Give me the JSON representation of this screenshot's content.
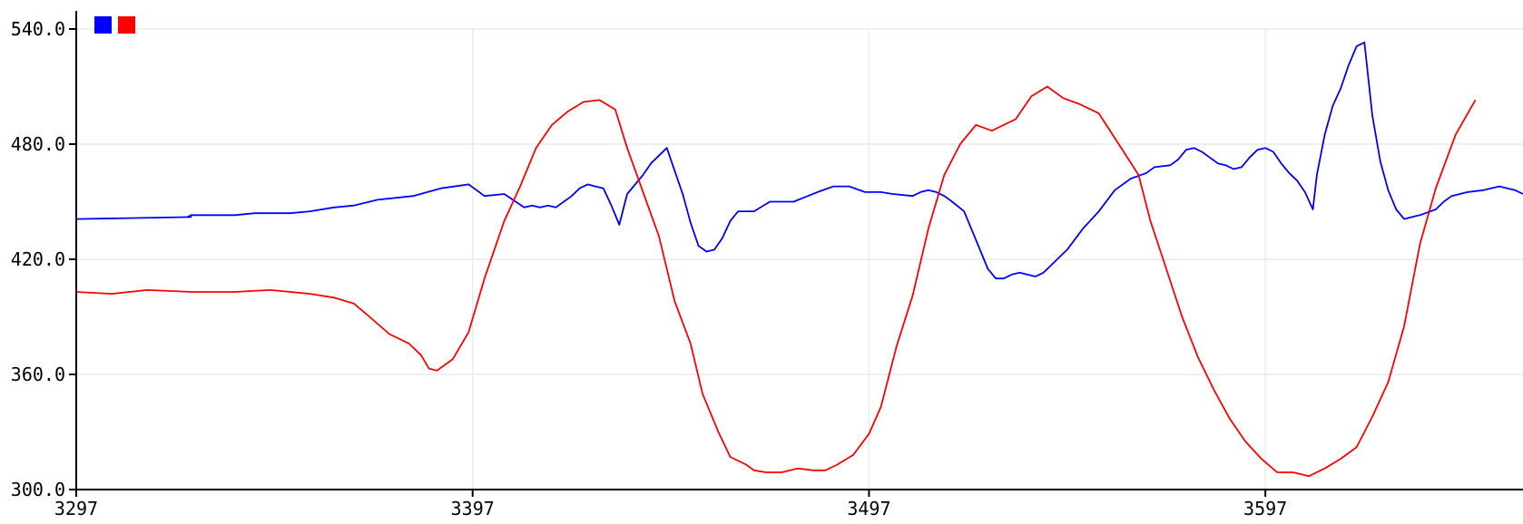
{
  "chart_data": {
    "type": "line",
    "title": "",
    "xlabel": "",
    "ylabel": "",
    "xlim": [
      3297,
      3662
    ],
    "ylim": [
      300,
      540
    ],
    "x_ticks": [
      3297,
      3397,
      3497,
      3597
    ],
    "x_tick_labels": [
      "3297",
      "3397",
      "3497",
      "3597"
    ],
    "y_ticks": [
      300,
      360,
      420,
      480,
      540
    ],
    "y_tick_labels": [
      "300.0",
      "360.0",
      "420.0",
      "480.0",
      "540.0"
    ],
    "grid": true,
    "legend": "top-left",
    "series": [
      {
        "color": "#0000ff",
        "points": [
          [
            3297,
            441
          ],
          [
            3326,
            442
          ],
          [
            3325,
            442
          ],
          [
            3326,
            443
          ],
          [
            3337,
            443
          ],
          [
            3342,
            444
          ],
          [
            3351,
            444
          ],
          [
            3356,
            445
          ],
          [
            3362,
            447
          ],
          [
            3367,
            448
          ],
          [
            3373,
            451
          ],
          [
            3382,
            453
          ],
          [
            3389,
            457
          ],
          [
            3396,
            459
          ],
          [
            3400,
            453
          ],
          [
            3405,
            454
          ],
          [
            3410,
            447
          ],
          [
            3412,
            448
          ],
          [
            3414,
            447
          ],
          [
            3416,
            448
          ],
          [
            3418,
            447
          ],
          [
            3420,
            450
          ],
          [
            3422,
            453
          ],
          [
            3424,
            457
          ],
          [
            3426,
            459
          ],
          [
            3428,
            458
          ],
          [
            3430,
            457
          ],
          [
            3432,
            448
          ],
          [
            3434,
            438
          ],
          [
            3436,
            454
          ],
          [
            3440,
            464
          ],
          [
            3442,
            470
          ],
          [
            3446,
            478
          ],
          [
            3448,
            466
          ],
          [
            3450,
            454
          ],
          [
            3452,
            439
          ],
          [
            3454,
            427
          ],
          [
            3456,
            424
          ],
          [
            3458,
            425
          ],
          [
            3460,
            431
          ],
          [
            3462,
            440
          ],
          [
            3464,
            445
          ],
          [
            3468,
            445
          ],
          [
            3472,
            450
          ],
          [
            3478,
            450
          ],
          [
            3484,
            455
          ],
          [
            3488,
            458
          ],
          [
            3492,
            458
          ],
          [
            3496,
            455
          ],
          [
            3500,
            455
          ],
          [
            3503,
            454
          ],
          [
            3508,
            453
          ],
          [
            3510,
            455
          ],
          [
            3512,
            456
          ],
          [
            3514,
            455
          ],
          [
            3516,
            453
          ],
          [
            3518,
            450
          ],
          [
            3521,
            445
          ],
          [
            3523,
            435
          ],
          [
            3525,
            425
          ],
          [
            3527,
            415
          ],
          [
            3529,
            410
          ],
          [
            3531,
            410
          ],
          [
            3533,
            412
          ],
          [
            3535,
            413
          ],
          [
            3539,
            411
          ],
          [
            3541,
            413
          ],
          [
            3543,
            417
          ],
          [
            3547,
            425
          ],
          [
            3551,
            436
          ],
          [
            3555,
            445
          ],
          [
            3559,
            456
          ],
          [
            3563,
            462
          ],
          [
            3567,
            465
          ],
          [
            3569,
            468
          ],
          [
            3573,
            469
          ],
          [
            3575,
            472
          ],
          [
            3577,
            477
          ],
          [
            3579,
            478
          ],
          [
            3581,
            476
          ],
          [
            3583,
            473
          ],
          [
            3585,
            470
          ],
          [
            3587,
            469
          ],
          [
            3589,
            467
          ],
          [
            3591,
            468
          ],
          [
            3593,
            473
          ],
          [
            3595,
            477
          ],
          [
            3597,
            478
          ],
          [
            3599,
            476
          ],
          [
            3601,
            470
          ],
          [
            3603,
            465
          ],
          [
            3605,
            461
          ],
          [
            3607,
            455
          ],
          [
            3609,
            446
          ],
          [
            3610,
            464
          ],
          [
            3612,
            485
          ],
          [
            3614,
            500
          ],
          [
            3616,
            509
          ],
          [
            3618,
            521
          ],
          [
            3620,
            531
          ],
          [
            3622,
            533
          ],
          [
            3624,
            495
          ],
          [
            3626,
            471
          ],
          [
            3628,
            456
          ],
          [
            3630,
            446
          ],
          [
            3632,
            441
          ],
          [
            3634,
            442
          ],
          [
            3636,
            443
          ],
          [
            3640,
            446
          ],
          [
            3642,
            450
          ],
          [
            3644,
            453
          ],
          [
            3648,
            455
          ],
          [
            3652,
            456
          ],
          [
            3656,
            458
          ],
          [
            3660,
            456
          ],
          [
            3662,
            454
          ]
        ]
      },
      {
        "color": "#ff0000",
        "points": [
          [
            3297,
            403
          ],
          [
            3306,
            402
          ],
          [
            3315,
            404
          ],
          [
            3326,
            403
          ],
          [
            3337,
            403
          ],
          [
            3346,
            404
          ],
          [
            3356,
            402
          ],
          [
            3362,
            400
          ],
          [
            3367,
            397
          ],
          [
            3371,
            390
          ],
          [
            3376,
            381
          ],
          [
            3381,
            376
          ],
          [
            3384,
            370
          ],
          [
            3386,
            363
          ],
          [
            3388,
            362
          ],
          [
            3392,
            368
          ],
          [
            3396,
            382
          ],
          [
            3400,
            410
          ],
          [
            3405,
            440
          ],
          [
            3409,
            458
          ],
          [
            3413,
            478
          ],
          [
            3417,
            490
          ],
          [
            3421,
            497
          ],
          [
            3425,
            502
          ],
          [
            3429,
            503
          ],
          [
            3433,
            498
          ],
          [
            3436,
            478
          ],
          [
            3440,
            455
          ],
          [
            3444,
            432
          ],
          [
            3448,
            398
          ],
          [
            3452,
            376
          ],
          [
            3455,
            350
          ],
          [
            3459,
            330
          ],
          [
            3462,
            317
          ],
          [
            3466,
            313
          ],
          [
            3468,
            310
          ],
          [
            3471,
            309
          ],
          [
            3475,
            309
          ],
          [
            3479,
            311
          ],
          [
            3483,
            310
          ],
          [
            3486,
            310
          ],
          [
            3489,
            313
          ],
          [
            3493,
            318
          ],
          [
            3497,
            329
          ],
          [
            3500,
            343
          ],
          [
            3504,
            375
          ],
          [
            3508,
            401
          ],
          [
            3512,
            436
          ],
          [
            3516,
            464
          ],
          [
            3520,
            480
          ],
          [
            3524,
            490
          ],
          [
            3528,
            487
          ],
          [
            3531,
            490
          ],
          [
            3534,
            493
          ],
          [
            3538,
            505
          ],
          [
            3542,
            510
          ],
          [
            3546,
            504
          ],
          [
            3550,
            501
          ],
          [
            3555,
            496
          ],
          [
            3560,
            480
          ],
          [
            3565,
            464
          ],
          [
            3568,
            440
          ],
          [
            3572,
            415
          ],
          [
            3576,
            390
          ],
          [
            3580,
            369
          ],
          [
            3584,
            352
          ],
          [
            3588,
            337
          ],
          [
            3592,
            325
          ],
          [
            3596,
            316
          ],
          [
            3600,
            309
          ],
          [
            3604,
            309
          ],
          [
            3608,
            307
          ],
          [
            3612,
            311
          ],
          [
            3616,
            316
          ],
          [
            3620,
            322
          ],
          [
            3624,
            338
          ],
          [
            3628,
            356
          ],
          [
            3632,
            385
          ],
          [
            3636,
            428
          ],
          [
            3640,
            457
          ],
          [
            3645,
            485
          ],
          [
            3650,
            503
          ]
        ]
      }
    ]
  },
  "legend": {
    "items": [
      {
        "color": "#0000ff"
      },
      {
        "color": "#ff0000"
      }
    ]
  }
}
